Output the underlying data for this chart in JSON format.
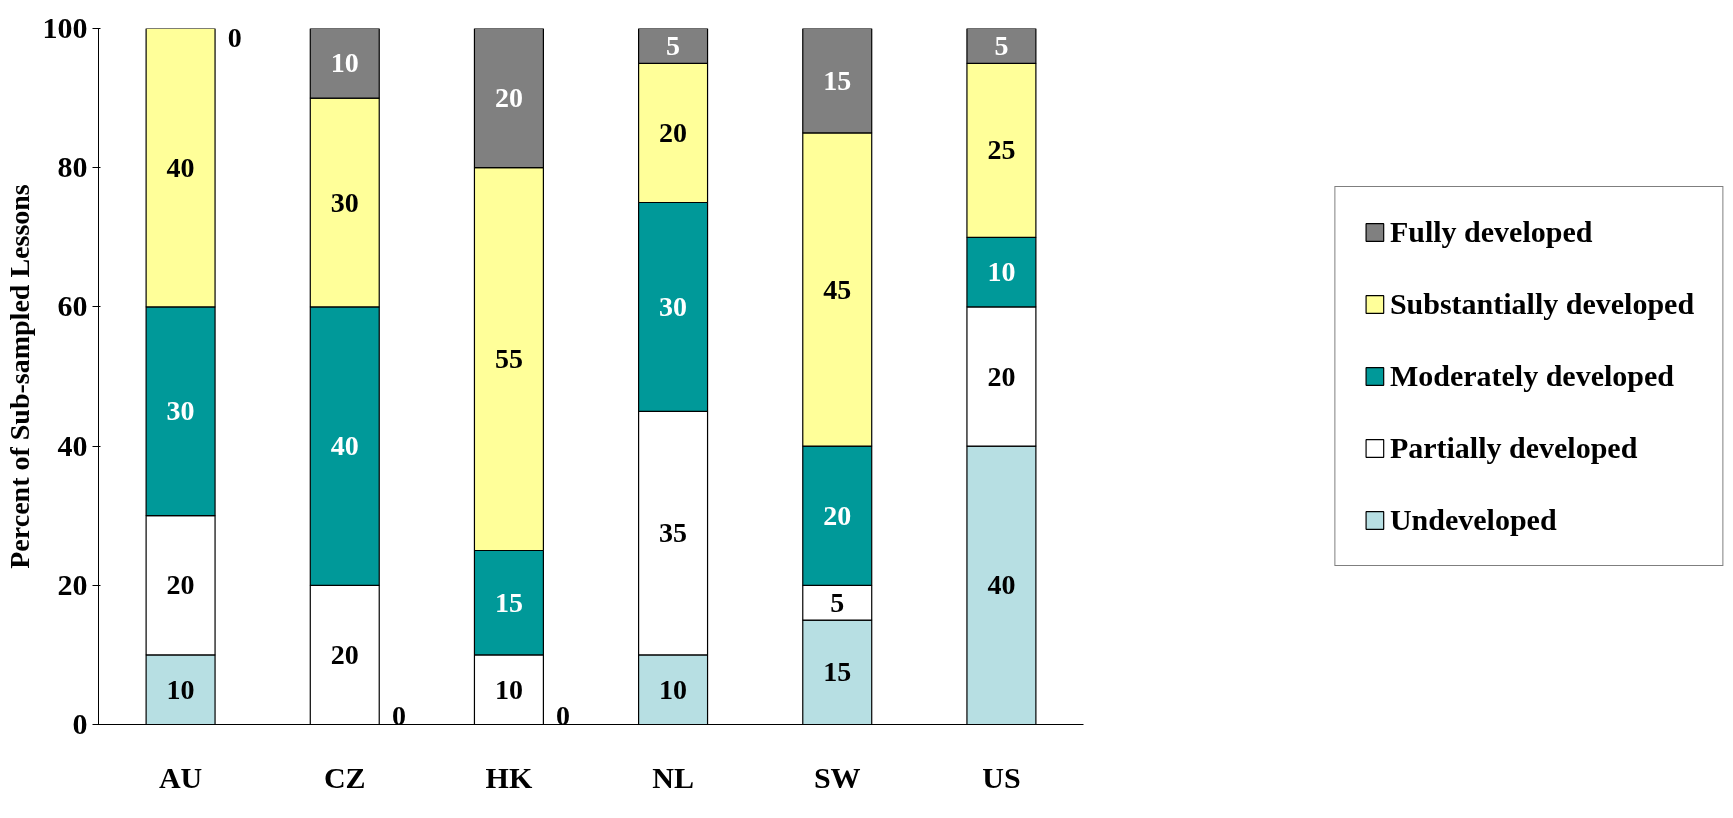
{
  "chart_data": {
    "type": "bar",
    "stacked": true,
    "ylabel": "Percent of Sub-sampled Lessons",
    "categories": [
      "AU",
      "CZ",
      "HK",
      "NL",
      "SW",
      "US"
    ],
    "series": [
      {
        "name": "Undeveloped",
        "color": "#b7dfe3",
        "values": [
          10,
          0,
          0,
          10,
          15,
          40
        ],
        "value_labels": [
          "10",
          null,
          null,
          "10",
          "15",
          "40"
        ]
      },
      {
        "name": "Partially developed",
        "color": "#ffffff",
        "values": [
          20,
          20,
          10,
          35,
          5,
          20
        ],
        "value_labels": [
          "20",
          "20",
          "10",
          "35",
          "5",
          "20"
        ]
      },
      {
        "name": "Moderately developed",
        "color": "#009999",
        "values": [
          30,
          40,
          15,
          30,
          20,
          10
        ],
        "value_labels": [
          "30",
          "40",
          "15",
          "30",
          "20",
          "10"
        ]
      },
      {
        "name": "Substantially developed",
        "color": "#ffff99",
        "values": [
          40,
          30,
          55,
          20,
          45,
          25
        ],
        "value_labels": [
          "40",
          "30",
          "55",
          "20",
          "45",
          "25"
        ]
      },
      {
        "name": "Fully developed",
        "color": "#808080",
        "values": [
          0,
          10,
          20,
          5,
          15,
          5
        ],
        "value_labels": [
          null,
          "10",
          "20",
          "5",
          "15",
          "5"
        ]
      }
    ],
    "annotations": [
      {
        "text": "0",
        "x": "AU",
        "y": 100
      },
      {
        "text": "0",
        "x": "CZ",
        "y": 0
      },
      {
        "text": "0",
        "x": "HK",
        "y": 0
      }
    ],
    "ylim": [
      0,
      100
    ],
    "yticks": [
      0,
      20,
      40,
      60,
      80,
      100
    ],
    "grid": false,
    "legend": "right"
  }
}
